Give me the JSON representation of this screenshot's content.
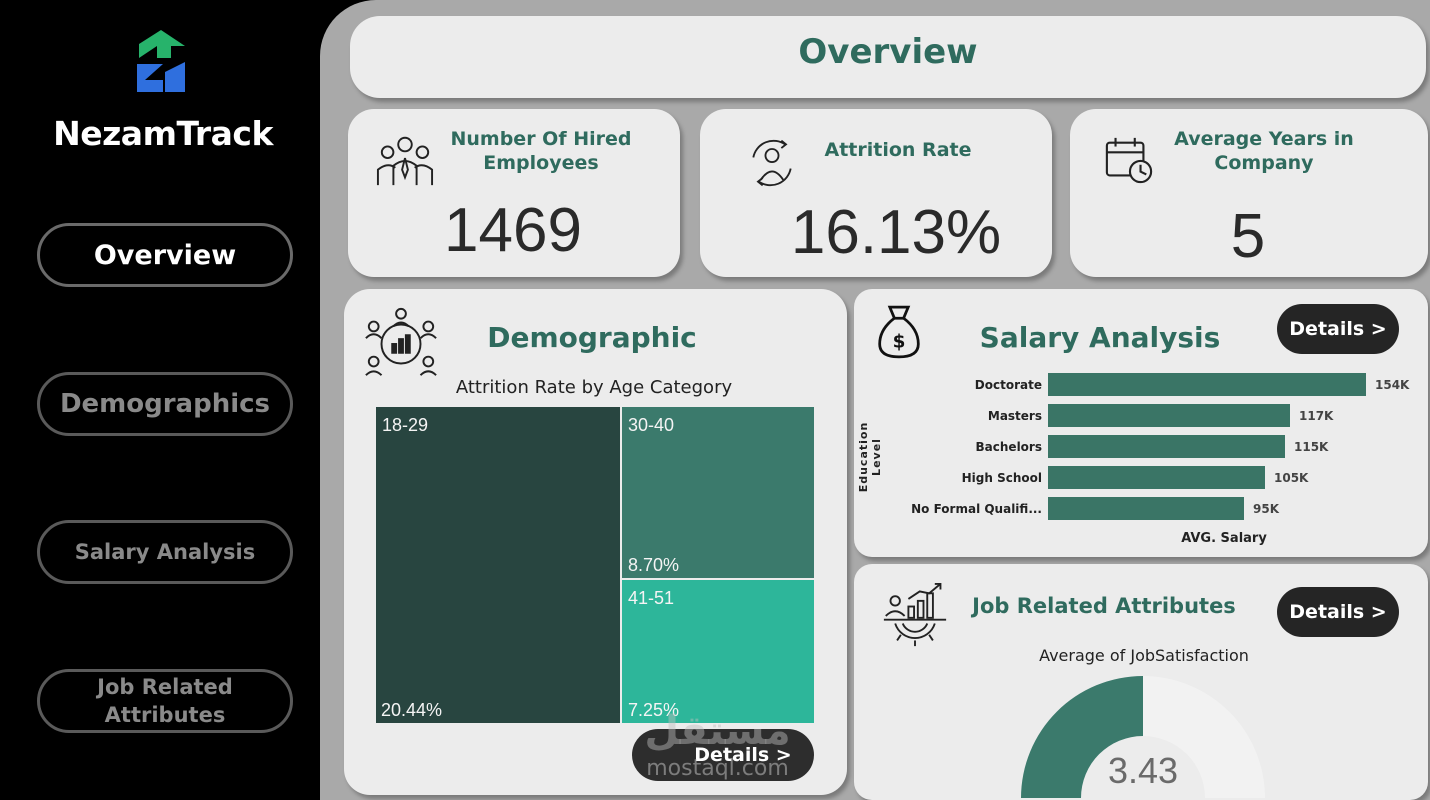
{
  "brand": {
    "name": "NezamTrack"
  },
  "nav": {
    "overview": "Overview",
    "demographics": "Demographics",
    "salary": "Salary Analysis",
    "job_line1": "Job Related",
    "job_line2": "Attributes"
  },
  "header": {
    "title": "Overview"
  },
  "kpis": {
    "hired": {
      "title_line1": "Number Of Hired",
      "title_line2": "Employees",
      "value": "1469",
      "icon": "employees-group-icon"
    },
    "attrition": {
      "title": "Attrition Rate",
      "value": "16.13%",
      "icon": "attrition-cycle-icon"
    },
    "years": {
      "title_line1": "Average Years in",
      "title_line2": "Company",
      "value": "5",
      "icon": "calendar-clock-icon"
    }
  },
  "demographic": {
    "title": "Demographic",
    "chart_title": "Attrition Rate by Age Category",
    "details_label": "Details >",
    "icon": "people-chart-icon"
  },
  "salary": {
    "title": "Salary Analysis",
    "details_label": "Details >",
    "icon": "money-bag-icon"
  },
  "job": {
    "title": "Job Related Attributes",
    "details_label": "Details >",
    "gauge_title": "Average of JobSatisfaction",
    "gauge_value": "3.43",
    "icon": "analytics-gear-icon"
  },
  "watermark": {
    "text_arabic": "مستقل",
    "text_latin": "mostaql.com"
  },
  "colors": {
    "teal_dark": "#284540",
    "teal_mid": "#3b7a6c",
    "teal_light": "#2db69a",
    "bar": "#3a7566",
    "gauge_fill": "#3b7a6c",
    "gauge_track": "#f2f2f2"
  },
  "chart_data": [
    {
      "type": "treemap",
      "title": "Attrition Rate by Age Category",
      "categories": [
        "18-29",
        "30-40",
        "41-51"
      ],
      "values": [
        20.44,
        8.7,
        7.25
      ],
      "labels": [
        "20.44%",
        "8.70%",
        "7.25%"
      ],
      "colors": [
        "#284540",
        "#3b7a6c",
        "#2db69a"
      ]
    },
    {
      "type": "bar",
      "orientation": "horizontal",
      "categories": [
        "Doctorate",
        "Masters",
        "Bachelors",
        "High School",
        "No Formal Qualifi..."
      ],
      "values": [
        154,
        117,
        115,
        105,
        95
      ],
      "labels": [
        "154K",
        "117K",
        "115K",
        "105K",
        "95K"
      ],
      "xlabel": "AVG. Salary",
      "ylabel": "Education Level",
      "xlim": [
        0,
        154
      ]
    },
    {
      "type": "gauge",
      "title": "Average of JobSatisfaction",
      "value": 3.43,
      "label": "3.43",
      "range": [
        0,
        6.86
      ]
    }
  ]
}
